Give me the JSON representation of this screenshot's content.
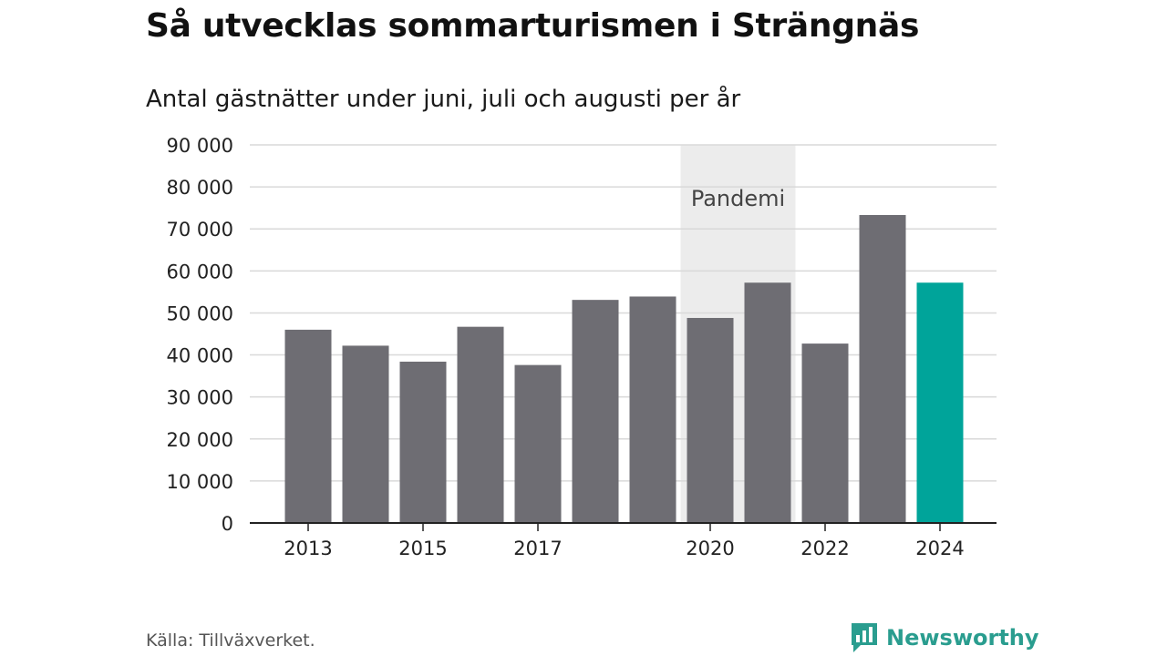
{
  "header": {
    "title": "Så utvecklas sommarturismen i Strängnäs",
    "subtitle": "Antal gästnätter under juni, juli och augusti per år"
  },
  "footer": {
    "source": "Källa: Tillväxverket.",
    "brand": "Newsworthy",
    "brand_icon": "newsworthy-logo-icon"
  },
  "chart_data": {
    "type": "bar",
    "categories": [
      "2013",
      "2014",
      "2015",
      "2016",
      "2017",
      "2018",
      "2019",
      "2020",
      "2021",
      "2022",
      "2023",
      "2024"
    ],
    "values": [
      46000,
      42200,
      38400,
      46700,
      37600,
      53100,
      53900,
      48800,
      57200,
      42700,
      73300,
      57200
    ],
    "x_tick_labels": [
      "2013",
      "2015",
      "2017",
      "2020",
      "2022",
      "2024"
    ],
    "y_ticks": [
      0,
      10000,
      20000,
      30000,
      40000,
      50000,
      60000,
      70000,
      80000,
      90000
    ],
    "y_tick_labels": [
      "0",
      "10 000",
      "20 000",
      "30 000",
      "40 000",
      "50 000",
      "60 000",
      "70 000",
      "80 000",
      "90 000"
    ],
    "ylim": [
      0,
      90000
    ],
    "grid": true,
    "legend": "none",
    "highlight_category": "2024",
    "bar_color": "#6e6d73",
    "highlight_color": "#00a49a",
    "band": {
      "label": "Pandemi",
      "from_category": "2020",
      "to_category": "2021",
      "color": "#ececec"
    },
    "xlabel": "",
    "ylabel": ""
  }
}
